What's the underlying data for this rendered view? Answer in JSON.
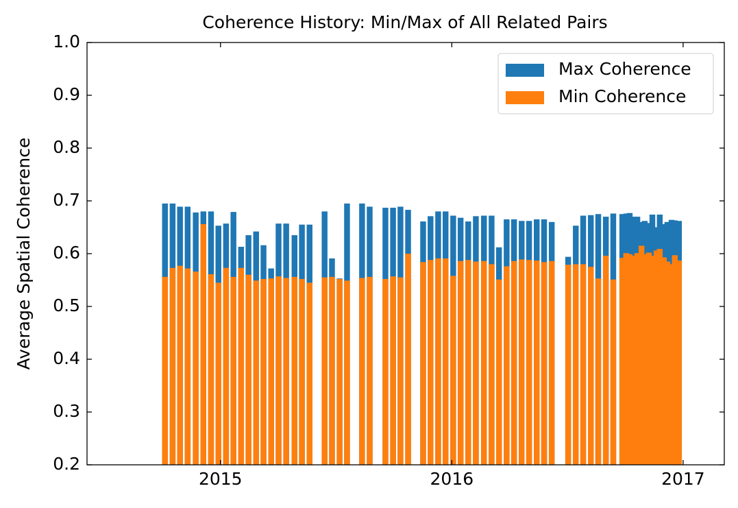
{
  "chart_data": {
    "type": "bar",
    "title": "Coherence History: Min/Max of All Related Pairs",
    "y_label": "Average Spatial Coherence",
    "x": [
      2014.76,
      2014.793,
      2014.825,
      2014.858,
      2014.893,
      2014.926,
      2014.959,
      2014.991,
      2015.024,
      2015.056,
      2015.089,
      2015.121,
      2015.154,
      2015.186,
      2015.219,
      2015.251,
      2015.284,
      2015.32,
      2015.352,
      2015.385,
      2015.45,
      2015.482,
      2015.515,
      2015.547,
      2015.612,
      2015.645,
      2015.713,
      2015.746,
      2015.778,
      2015.811,
      2015.876,
      2015.908,
      2015.941,
      2015.973,
      2016.006,
      2016.038,
      2016.071,
      2016.104,
      2016.139,
      2016.172,
      2016.204,
      2016.237,
      2016.269,
      2016.302,
      2016.334,
      2016.367,
      2016.399,
      2016.432,
      2016.503,
      2016.536,
      2016.568,
      2016.601,
      2016.633,
      2016.666,
      2016.698,
      2016.737,
      2016.754,
      2016.769,
      2016.787,
      2016.802,
      2016.82,
      2016.834,
      2016.852,
      2016.867,
      2016.885,
      2016.899,
      2016.917,
      2016.932,
      2016.95,
      2016.964,
      2016.982
    ],
    "series": [
      {
        "name": "Max Coherence",
        "color": "#1f77b4",
        "values": [
          0.695,
          0.695,
          0.689,
          0.689,
          0.678,
          0.68,
          0.68,
          0.653,
          0.657,
          0.679,
          0.613,
          0.635,
          0.642,
          0.616,
          0.572,
          0.657,
          0.657,
          0.635,
          0.655,
          0.655,
          0.68,
          0.591,
          0.553,
          0.695,
          0.695,
          0.689,
          0.687,
          0.687,
          0.689,
          0.683,
          0.661,
          0.671,
          0.68,
          0.68,
          0.672,
          0.668,
          0.661,
          0.671,
          0.672,
          0.672,
          0.612,
          0.665,
          0.665,
          0.662,
          0.662,
          0.665,
          0.665,
          0.66,
          0.594,
          0.653,
          0.672,
          0.673,
          0.675,
          0.67,
          0.676,
          0.675,
          0.676,
          0.677,
          0.67,
          0.67,
          0.66,
          0.662,
          0.658,
          0.674,
          0.65,
          0.674,
          0.656,
          0.66,
          0.664,
          0.663,
          0.662
        ]
      },
      {
        "name": "Min Coherence",
        "color": "#ff7f0e",
        "values": [
          0.556,
          0.573,
          0.577,
          0.572,
          0.566,
          0.656,
          0.561,
          0.545,
          0.573,
          0.556,
          0.573,
          0.56,
          0.549,
          0.552,
          0.553,
          0.557,
          0.554,
          0.556,
          0.552,
          0.545,
          0.555,
          0.556,
          0.552,
          0.549,
          0.554,
          0.556,
          0.552,
          0.557,
          0.555,
          0.6,
          0.584,
          0.588,
          0.591,
          0.591,
          0.558,
          0.586,
          0.588,
          0.585,
          0.586,
          0.58,
          0.551,
          0.576,
          0.586,
          0.589,
          0.588,
          0.587,
          0.584,
          0.586,
          0.579,
          0.58,
          0.58,
          0.575,
          0.553,
          0.596,
          0.551,
          0.592,
          0.601,
          0.599,
          0.596,
          0.601,
          0.615,
          0.599,
          0.602,
          0.596,
          0.606,
          0.609,
          0.593,
          0.585,
          0.58,
          0.597,
          0.587
        ]
      }
    ],
    "xlim": [
      2014.423,
      2017.178
    ],
    "xticks": [
      2015,
      2016,
      2017
    ],
    "ylim": [
      0.2,
      1.0
    ],
    "yticks": [
      0.2,
      0.3,
      0.4,
      0.5,
      0.6,
      0.7,
      0.8,
      0.9,
      {
        "value": 1.0,
        "label": "1.0"
      }
    ],
    "legend": "upper right"
  }
}
